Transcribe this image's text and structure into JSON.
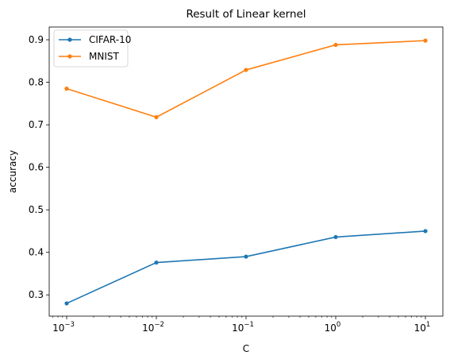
{
  "chart_data": {
    "type": "line",
    "title": "Result of Linear kernel",
    "xlabel": "C",
    "ylabel": "accuracy",
    "xscale": "log",
    "x": [
      0.001,
      0.01,
      0.1,
      1,
      10
    ],
    "x_ticks": [
      {
        "base": "10",
        "exp": "−3"
      },
      {
        "base": "10",
        "exp": "−2"
      },
      {
        "base": "10",
        "exp": "−1"
      },
      {
        "base": "10",
        "exp": "0"
      },
      {
        "base": "10",
        "exp": "1"
      }
    ],
    "y_ticks": [
      "0.3",
      "0.4",
      "0.5",
      "0.6",
      "0.7",
      "0.8",
      "0.9"
    ],
    "ylim": [
      0.25,
      0.93
    ],
    "grid": false,
    "legend_position": "top-left",
    "series": [
      {
        "name": "CIFAR-10",
        "color": "#1f77b4",
        "values": [
          0.28,
          0.376,
          0.39,
          0.436,
          0.45
        ]
      },
      {
        "name": "MNIST",
        "color": "#ff7f0e",
        "values": [
          0.785,
          0.718,
          0.829,
          0.888,
          0.898
        ]
      }
    ]
  }
}
